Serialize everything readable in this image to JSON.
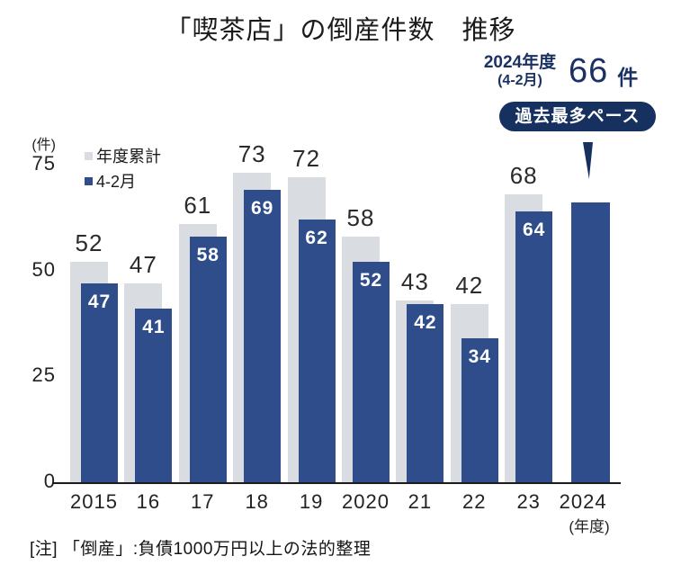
{
  "title": "「喫茶店」の倒産件数　推移",
  "annotation": {
    "line1": "2024年度",
    "line2": "(4-2月)",
    "value": "66",
    "unit": "件"
  },
  "badge": {
    "label": "過去最多ペース"
  },
  "note": "[注] 「倒産」:負債1000万円以上の法的整理",
  "y_axis": {
    "unit": "(件)",
    "ticks": [
      0,
      25,
      50,
      75
    ],
    "max": 75
  },
  "x_axis": {
    "suffix": "(年度)"
  },
  "legend": [
    {
      "label": "年度累計",
      "color": "#d9dce0"
    },
    {
      "label": "4-2月",
      "color": "#2f4d8b"
    }
  ],
  "colors": {
    "bar_annual_total": "#d9dce0",
    "bar_apr_feb": "#2f4d8b",
    "badge_navy": "#16305f",
    "annotation_navy": "#1a3263",
    "axis_line": "#1a1a1a"
  },
  "chart_data": {
    "type": "bar",
    "title": "「喫茶店」の倒産件数 推移",
    "categories": [
      "2015",
      "16",
      "17",
      "18",
      "19",
      "2020",
      "21",
      "22",
      "23",
      "2024"
    ],
    "series": [
      {
        "name": "年度累計",
        "color": "#d9dce0",
        "values": [
          52,
          47,
          61,
          73,
          72,
          58,
          43,
          42,
          68,
          null
        ],
        "labels": [
          52,
          47,
          61,
          73,
          72,
          58,
          43,
          42,
          68,
          null
        ]
      },
      {
        "name": "4-2月",
        "color": "#2f4d8b",
        "values": [
          47,
          41,
          58,
          69,
          62,
          52,
          42,
          34,
          64,
          66
        ],
        "labels": [
          47,
          41,
          58,
          69,
          62,
          52,
          42,
          34,
          64,
          null
        ]
      }
    ],
    "ylabel": "(件)",
    "xlabel": "(年度)",
    "ylim": [
      0,
      75
    ],
    "grid": false,
    "legend_position": "top-left",
    "annotation_2024_value": "66件",
    "annotation_badge": "過去最多ペース"
  }
}
